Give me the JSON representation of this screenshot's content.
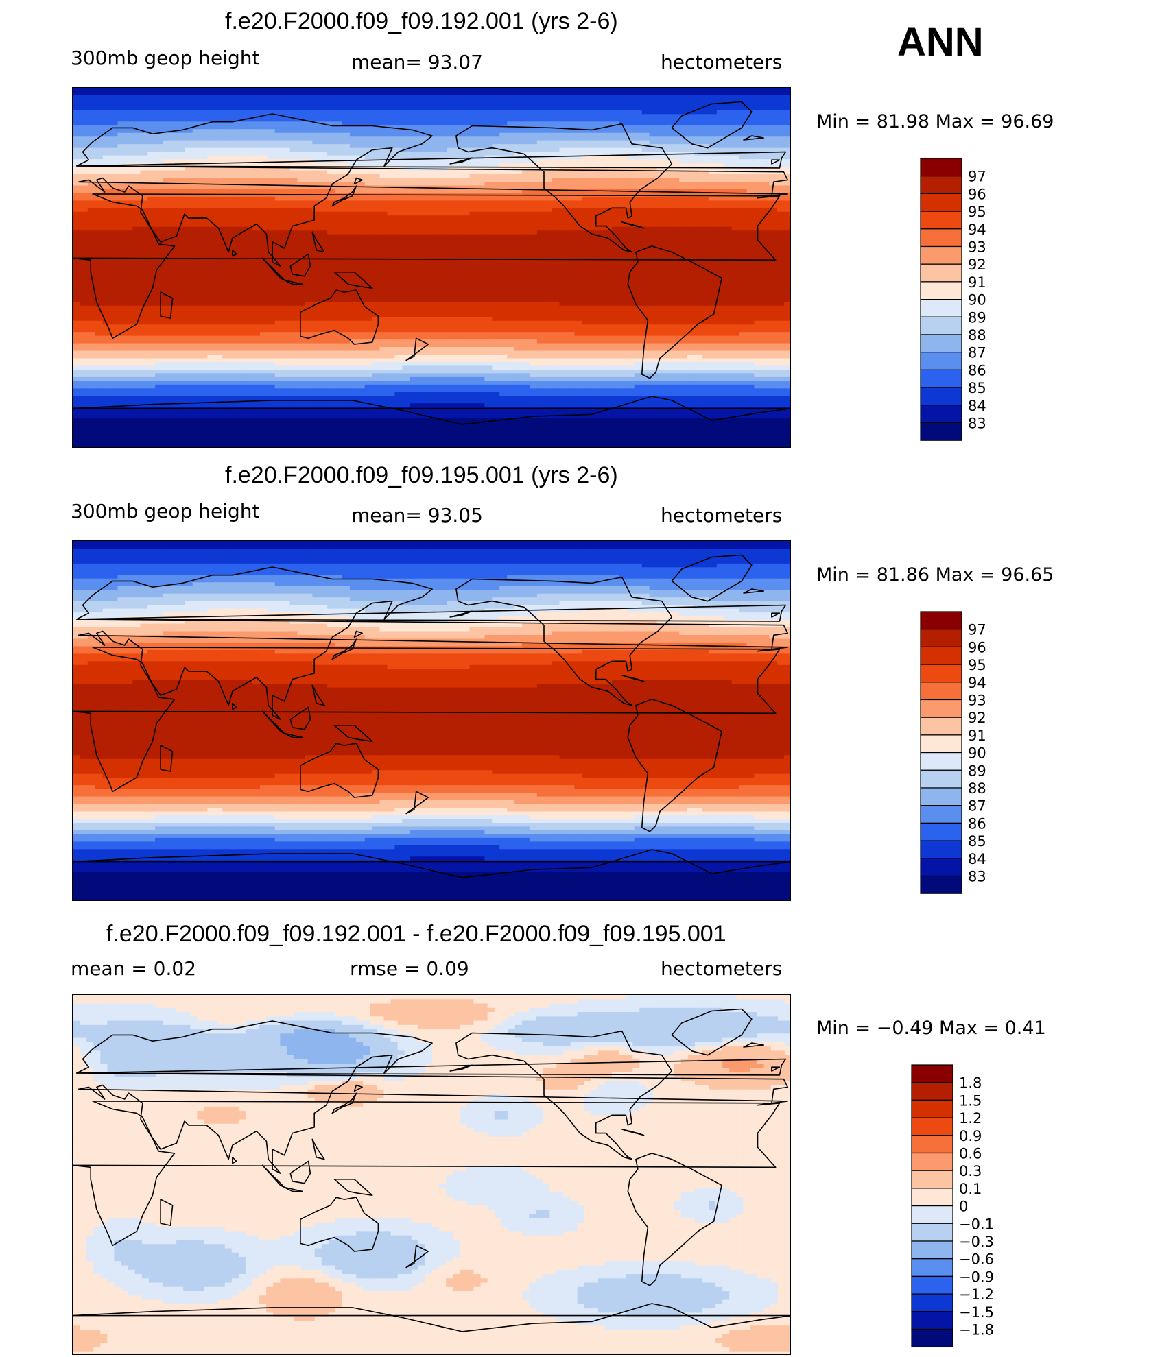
{
  "season": "ANN",
  "panels": [
    {
      "title": "f.e20.F2000.f09_f09.192.001 (yrs 2-6)",
      "left_label": "300mb  geop  height",
      "center_label": "mean=   93.07",
      "right_label": "hectometers",
      "min_max": "Min  =    81.98  Max  =    96.69"
    },
    {
      "title": "f.e20.F2000.f09_f09.195.001 (yrs 2-6)",
      "left_label": "300mb  geop  height",
      "center_label": "mean=   93.05",
      "right_label": "hectometers",
      "min_max": "Min  =    81.86  Max  =    96.65"
    },
    {
      "title": "f.e20.F2000.f09_f09.192.001 - f.e20.F2000.f09_f09.195.001",
      "left_label": "mean  =      0.02",
      "center_label": "rmse  =     0.09",
      "right_label": "hectometers",
      "min_max": "Min  =   −0.49  Max  =     0.41"
    }
  ],
  "colorbar_field": {
    "labels": [
      "97",
      "96",
      "95",
      "94",
      "93",
      "92",
      "91",
      "90",
      "89",
      "88",
      "87",
      "86",
      "85",
      "84",
      "83"
    ],
    "colors": [
      "#8a0000",
      "#b31f00",
      "#d43000",
      "#ec4a10",
      "#f7703a",
      "#fb9a6c",
      "#fdc4a4",
      "#fee7d6",
      "#dde9f8",
      "#b9d1f1",
      "#8fb5ef",
      "#5a8ff0",
      "#2c63ee",
      "#0d38d4",
      "#0414a6",
      "#000a7a"
    ]
  },
  "colorbar_diff": {
    "labels": [
      "1.8",
      "1.5",
      "1.2",
      "0.9",
      "0.6",
      "0.3",
      "0.1",
      "0",
      "−0.1",
      "−0.3",
      "−0.6",
      "−0.9",
      "−1.2",
      "−1.5",
      "−1.8"
    ],
    "colors": [
      "#8a0000",
      "#b31f00",
      "#d43000",
      "#ec4a10",
      "#f7703a",
      "#fb9a6c",
      "#fdc4a4",
      "#fee7d6",
      "#dde9f8",
      "#b9d1f1",
      "#8fb5ef",
      "#5a8ff0",
      "#2c63ee",
      "#0d38d4",
      "#0414a6",
      "#000a7a"
    ]
  },
  "chart_data": [
    {
      "type": "heatmap",
      "title": "f.e20.F2000.f09_f09.192.001 (yrs 2-6)",
      "variable": "300mb geop height",
      "units": "hectometers",
      "mean": 93.07,
      "min": 81.98,
      "max": 96.69,
      "contour_levels": [
        83,
        84,
        85,
        86,
        87,
        88,
        89,
        90,
        91,
        92,
        93,
        94,
        95,
        96,
        97
      ],
      "zonal_profile": {
        "lat": [
          90,
          75,
          60,
          45,
          30,
          15,
          0,
          -15,
          -30,
          -45,
          -60,
          -75,
          -90
        ],
        "value": [
          83.6,
          85.5,
          88.4,
          91.6,
          94.9,
          96.3,
          96.5,
          96.3,
          94.6,
          90.9,
          85.6,
          82.9,
          82.0
        ]
      }
    },
    {
      "type": "heatmap",
      "title": "f.e20.F2000.f09_f09.195.001 (yrs 2-6)",
      "variable": "300mb geop height",
      "units": "hectometers",
      "mean": 93.05,
      "min": 81.86,
      "max": 96.65,
      "contour_levels": [
        83,
        84,
        85,
        86,
        87,
        88,
        89,
        90,
        91,
        92,
        93,
        94,
        95,
        96,
        97
      ],
      "zonal_profile": {
        "lat": [
          90,
          75,
          60,
          45,
          30,
          15,
          0,
          -15,
          -30,
          -45,
          -60,
          -75,
          -90
        ],
        "value": [
          83.6,
          85.5,
          88.4,
          91.6,
          94.9,
          96.3,
          96.5,
          96.3,
          94.6,
          90.9,
          85.6,
          82.9,
          81.9
        ]
      }
    },
    {
      "type": "heatmap",
      "title": "f.e20.F2000.f09_f09.192.001 - f.e20.F2000.f09_f09.195.001",
      "units": "hectometers",
      "mean": 0.02,
      "rmse": 0.09,
      "min": -0.49,
      "max": 0.41,
      "contour_levels": [
        -1.8,
        -1.5,
        -1.2,
        -0.9,
        -0.6,
        -0.3,
        -0.1,
        0,
        0.1,
        0.3,
        0.6,
        0.9,
        1.2,
        1.5,
        1.8
      ]
    }
  ]
}
